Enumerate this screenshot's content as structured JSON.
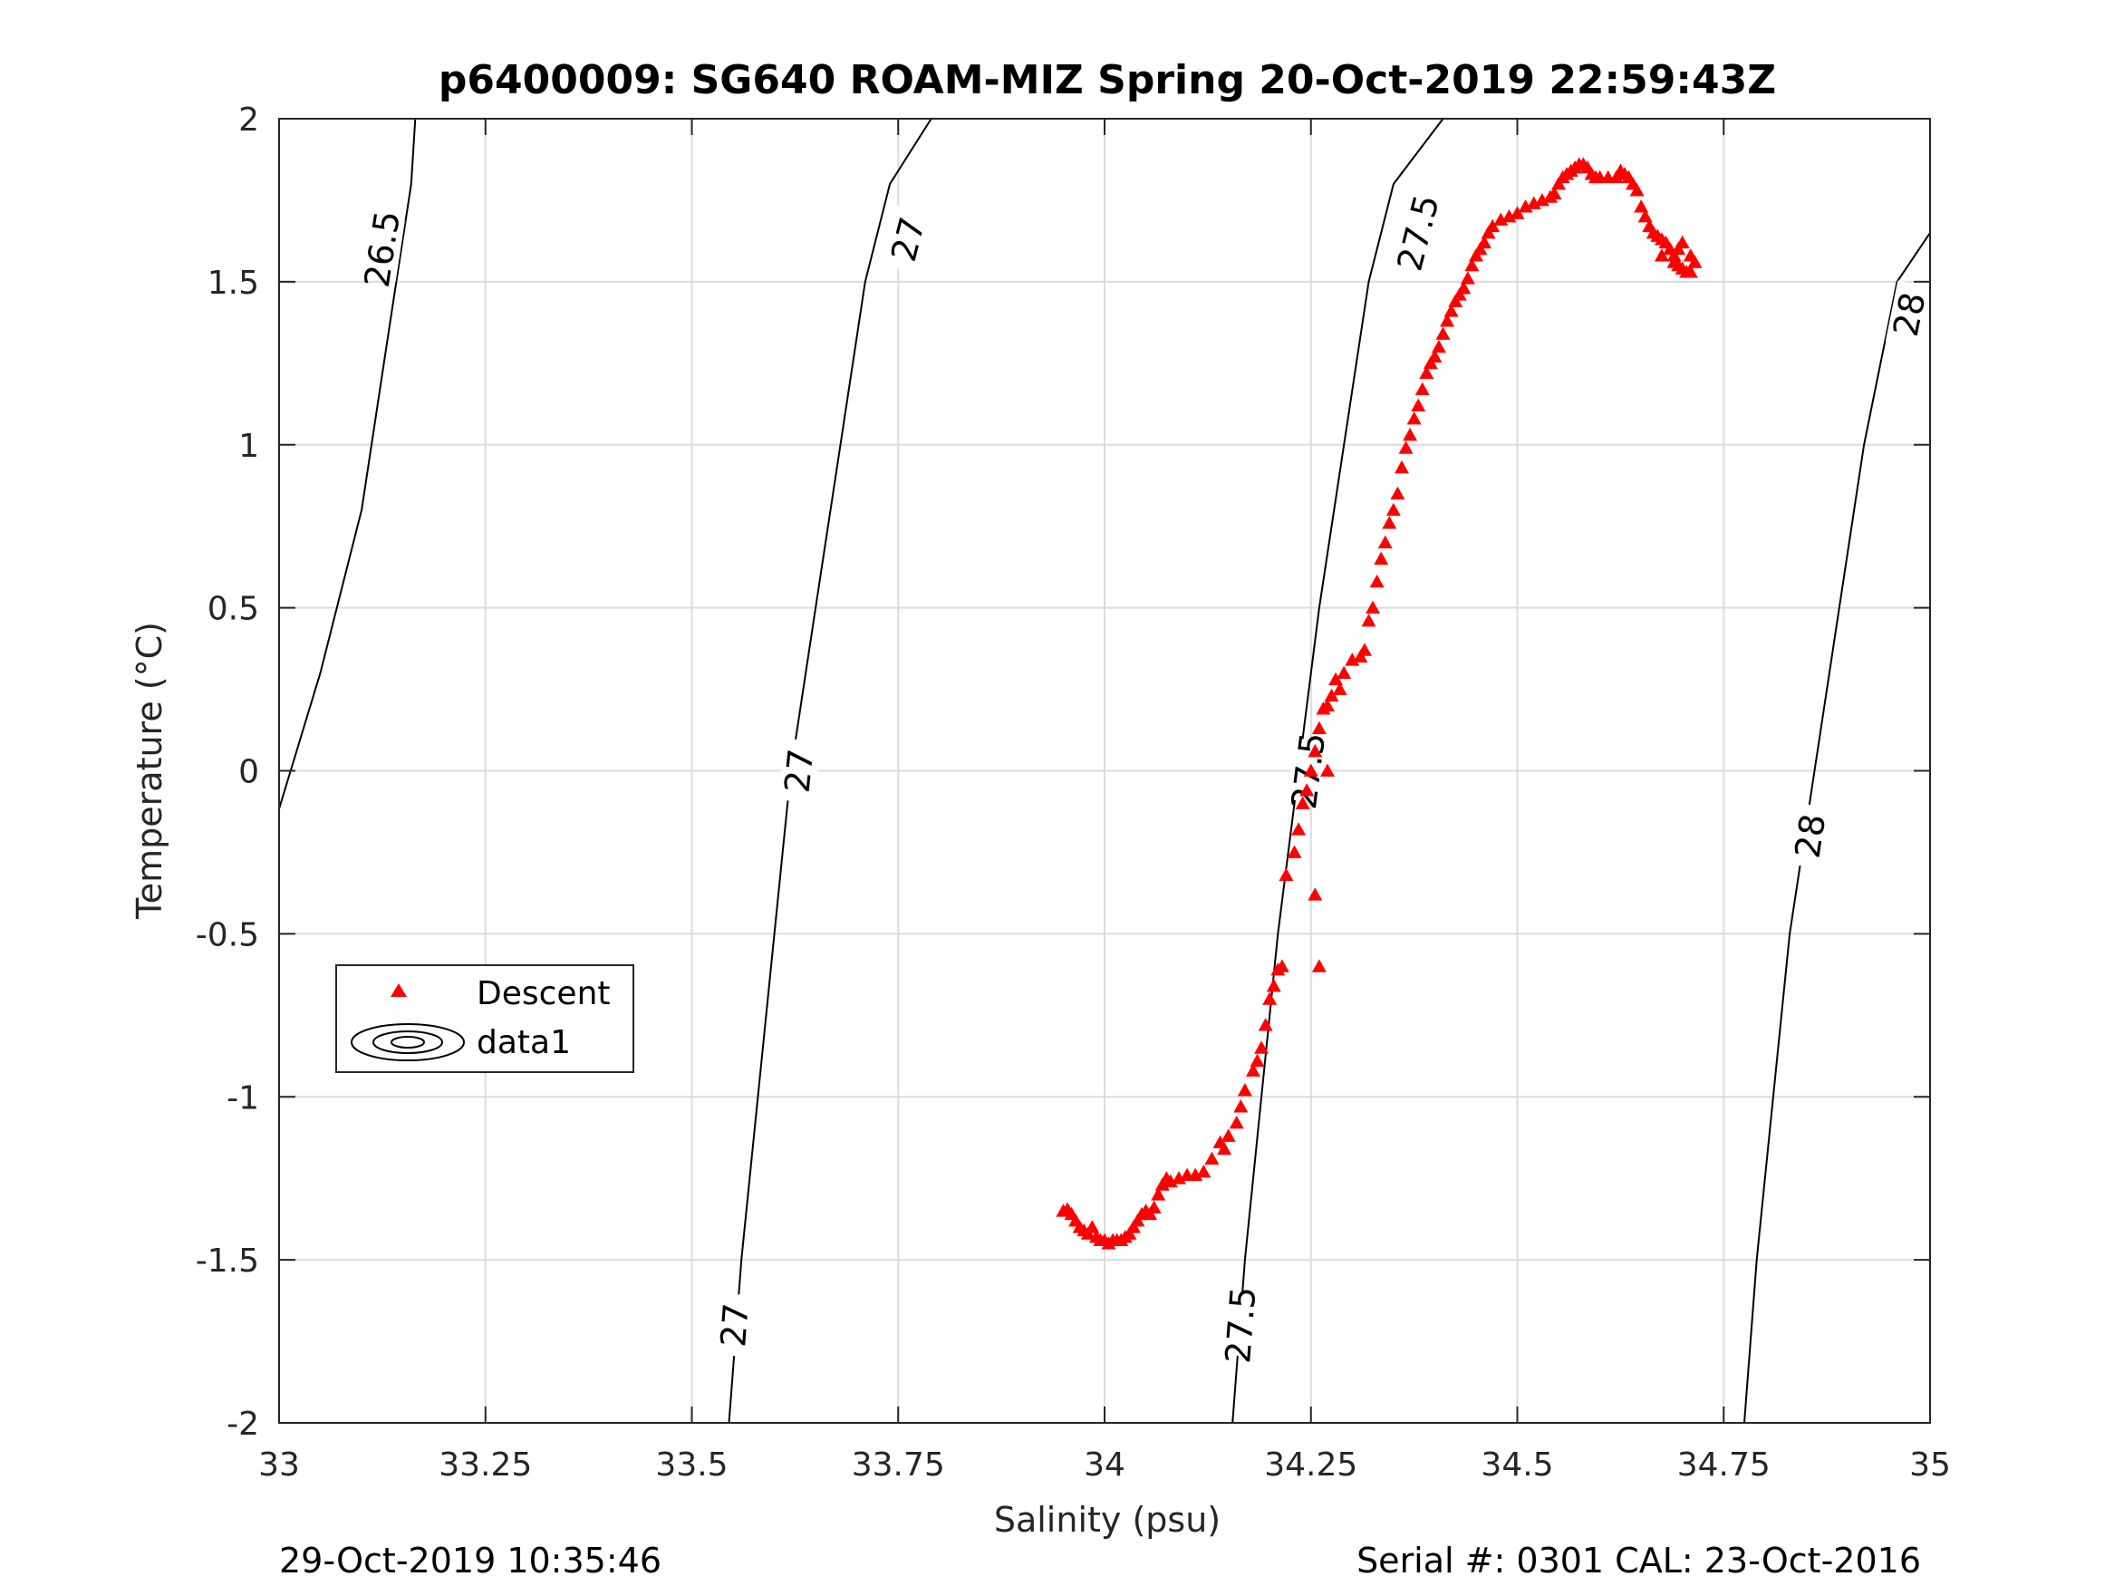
{
  "chart_data": {
    "type": "scatter",
    "title": "p6400009: SG640 ROAM-MIZ Spring 20-Oct-2019 22:59:43Z",
    "xlabel": "Salinity (psu)",
    "ylabel": "Temperature (°C)",
    "xlim": [
      33,
      35
    ],
    "ylim": [
      -2,
      2
    ],
    "grid": true,
    "x_ticks": [
      33,
      33.25,
      33.5,
      33.75,
      34,
      34.25,
      34.5,
      34.75,
      35
    ],
    "x_tick_labels": [
      "33",
      "33.25",
      "33.5",
      "33.75",
      "34",
      "34.25",
      "34.5",
      "34.75",
      "35"
    ],
    "y_ticks": [
      2,
      1.5,
      1,
      0.5,
      0,
      -0.5,
      -1,
      -1.5,
      -2
    ],
    "y_tick_labels": [
      "2",
      "1.5",
      "1",
      "0.5",
      "0",
      "-0.5",
      "-1",
      "-1.5",
      "-2"
    ],
    "legend": {
      "position": "left-middle",
      "entries": [
        "Descent",
        "data1"
      ]
    },
    "footer": {
      "left": "29-Oct-2019 10:35:46",
      "right": "Serial #: 0301  CAL: 23-Oct-2016"
    },
    "contours": [
      {
        "level": "26.5",
        "points": [
          [
            32.99,
            -0.2
          ],
          [
            33.05,
            0.3
          ],
          [
            33.1,
            0.8
          ],
          [
            33.13,
            1.3
          ],
          [
            33.16,
            1.8
          ],
          [
            33.165,
            2.0
          ]
        ],
        "labels": [
          {
            "s": 33.125,
            "t": 1.6
          }
        ]
      },
      {
        "level": "27",
        "points": [
          [
            33.545,
            -2.0
          ],
          [
            33.56,
            -1.5
          ],
          [
            33.58,
            -1.0
          ],
          [
            33.6,
            -0.5
          ],
          [
            33.62,
            0.0
          ],
          [
            33.65,
            0.5
          ],
          [
            33.68,
            1.0
          ],
          [
            33.71,
            1.5
          ],
          [
            33.74,
            1.8
          ],
          [
            33.79,
            2.0
          ]
        ],
        "labels": [
          {
            "s": 33.552,
            "t": -1.7
          },
          {
            "s": 33.63,
            "t": 0.0
          },
          {
            "s": 33.762,
            "t": 1.63
          }
        ]
      },
      {
        "level": "27.5",
        "points": [
          [
            34.155,
            -2.0
          ],
          [
            34.17,
            -1.5
          ],
          [
            34.19,
            -1.0
          ],
          [
            34.21,
            -0.5
          ],
          [
            34.235,
            0.0
          ],
          [
            34.26,
            0.5
          ],
          [
            34.29,
            1.0
          ],
          [
            34.32,
            1.5
          ],
          [
            34.35,
            1.8
          ],
          [
            34.41,
            2.0
          ]
        ],
        "labels": [
          {
            "s": 34.165,
            "t": -1.7
          },
          {
            "s": 34.247,
            "t": 0.0
          },
          {
            "s": 34.38,
            "t": 1.65
          }
        ]
      },
      {
        "level": "28",
        "points": [
          [
            34.775,
            -2.0
          ],
          [
            34.79,
            -1.5
          ],
          [
            34.81,
            -1.0
          ],
          [
            34.83,
            -0.5
          ],
          [
            34.86,
            0.0
          ],
          [
            34.89,
            0.5
          ],
          [
            34.92,
            1.0
          ],
          [
            34.96,
            1.5
          ],
          [
            35.0,
            1.65
          ]
        ],
        "labels": [
          {
            "s": 34.855,
            "t": -0.2
          },
          {
            "s": 34.975,
            "t": 1.4
          }
        ]
      }
    ],
    "series": [
      {
        "name": "Descent",
        "marker": "triangle",
        "color": "#ff0000",
        "points": [
          [
            33.95,
            -1.35
          ],
          [
            33.955,
            -1.345
          ],
          [
            33.96,
            -1.36
          ],
          [
            33.965,
            -1.38
          ],
          [
            33.97,
            -1.4
          ],
          [
            33.975,
            -1.41
          ],
          [
            33.98,
            -1.42
          ],
          [
            33.985,
            -1.4
          ],
          [
            33.99,
            -1.43
          ],
          [
            33.995,
            -1.44
          ],
          [
            34.0,
            -1.44
          ],
          [
            34.005,
            -1.45
          ],
          [
            34.01,
            -1.44
          ],
          [
            34.015,
            -1.44
          ],
          [
            34.02,
            -1.44
          ],
          [
            34.025,
            -1.43
          ],
          [
            34.03,
            -1.42
          ],
          [
            34.035,
            -1.4
          ],
          [
            34.04,
            -1.38
          ],
          [
            34.045,
            -1.36
          ],
          [
            34.05,
            -1.35
          ],
          [
            34.055,
            -1.36
          ],
          [
            34.06,
            -1.34
          ],
          [
            34.065,
            -1.3
          ],
          [
            34.07,
            -1.27
          ],
          [
            34.075,
            -1.25
          ],
          [
            34.08,
            -1.26
          ],
          [
            34.09,
            -1.25
          ],
          [
            34.1,
            -1.24
          ],
          [
            34.11,
            -1.24
          ],
          [
            34.12,
            -1.23
          ],
          [
            34.13,
            -1.19
          ],
          [
            34.14,
            -1.14
          ],
          [
            34.145,
            -1.16
          ],
          [
            34.15,
            -1.12
          ],
          [
            34.16,
            -1.08
          ],
          [
            34.165,
            -1.03
          ],
          [
            34.17,
            -0.98
          ],
          [
            34.18,
            -0.92
          ],
          [
            34.185,
            -0.89
          ],
          [
            34.19,
            -0.85
          ],
          [
            34.195,
            -0.78
          ],
          [
            34.2,
            -0.7
          ],
          [
            34.205,
            -0.66
          ],
          [
            34.21,
            -0.61
          ],
          [
            34.215,
            -0.6
          ],
          [
            34.22,
            -0.32
          ],
          [
            34.23,
            -0.25
          ],
          [
            34.235,
            -0.18
          ],
          [
            34.24,
            -0.1
          ],
          [
            34.245,
            -0.06
          ],
          [
            34.25,
            0.0
          ],
          [
            34.255,
            0.06
          ],
          [
            34.26,
            0.13
          ],
          [
            34.265,
            0.19
          ],
          [
            34.27,
            0.2
          ],
          [
            34.275,
            0.23
          ],
          [
            34.28,
            0.28
          ],
          [
            34.285,
            0.25
          ],
          [
            34.29,
            0.3
          ],
          [
            34.3,
            0.34
          ],
          [
            34.31,
            0.35
          ],
          [
            34.315,
            0.37
          ],
          [
            34.32,
            0.46
          ],
          [
            34.325,
            0.5
          ],
          [
            34.33,
            0.58
          ],
          [
            34.335,
            0.65
          ],
          [
            34.34,
            0.7
          ],
          [
            34.345,
            0.76
          ],
          [
            34.35,
            0.8
          ],
          [
            34.355,
            0.85
          ],
          [
            34.36,
            0.93
          ],
          [
            34.365,
            0.99
          ],
          [
            34.37,
            1.03
          ],
          [
            34.375,
            1.08
          ],
          [
            34.38,
            1.12
          ],
          [
            34.385,
            1.17
          ],
          [
            34.39,
            1.22
          ],
          [
            34.395,
            1.25
          ],
          [
            34.4,
            1.27
          ],
          [
            34.405,
            1.3
          ],
          [
            34.41,
            1.34
          ],
          [
            34.415,
            1.38
          ],
          [
            34.42,
            1.41
          ],
          [
            34.425,
            1.44
          ],
          [
            34.43,
            1.46
          ],
          [
            34.435,
            1.48
          ],
          [
            34.44,
            1.51
          ],
          [
            34.445,
            1.55
          ],
          [
            34.45,
            1.58
          ],
          [
            34.455,
            1.6
          ],
          [
            34.46,
            1.62
          ],
          [
            34.465,
            1.65
          ],
          [
            34.47,
            1.67
          ],
          [
            34.48,
            1.69
          ],
          [
            34.49,
            1.7
          ],
          [
            34.5,
            1.71
          ],
          [
            34.51,
            1.73
          ],
          [
            34.52,
            1.74
          ],
          [
            34.53,
            1.75
          ],
          [
            34.54,
            1.76
          ],
          [
            34.545,
            1.77
          ],
          [
            34.55,
            1.8
          ],
          [
            34.555,
            1.82
          ],
          [
            34.56,
            1.83
          ],
          [
            34.565,
            1.84
          ],
          [
            34.57,
            1.85
          ],
          [
            34.575,
            1.86
          ],
          [
            34.58,
            1.86
          ],
          [
            34.585,
            1.85
          ],
          [
            34.59,
            1.83
          ],
          [
            34.595,
            1.82
          ],
          [
            34.6,
            1.82
          ],
          [
            34.61,
            1.82
          ],
          [
            34.62,
            1.82
          ],
          [
            34.625,
            1.84
          ],
          [
            34.63,
            1.83
          ],
          [
            34.635,
            1.82
          ],
          [
            34.64,
            1.8
          ],
          [
            34.645,
            1.78
          ],
          [
            34.65,
            1.73
          ],
          [
            34.655,
            1.7
          ],
          [
            34.66,
            1.67
          ],
          [
            34.665,
            1.65
          ],
          [
            34.67,
            1.64
          ],
          [
            34.675,
            1.63
          ],
          [
            34.68,
            1.62
          ],
          [
            34.685,
            1.6
          ],
          [
            34.69,
            1.58
          ],
          [
            34.695,
            1.6
          ],
          [
            34.7,
            1.62
          ],
          [
            34.695,
            1.55
          ],
          [
            34.7,
            1.54
          ],
          [
            34.705,
            1.53
          ],
          [
            34.71,
            1.53
          ],
          [
            34.715,
            1.56
          ],
          [
            34.71,
            1.58
          ],
          [
            34.69,
            1.56
          ],
          [
            34.675,
            1.58
          ],
          [
            34.27,
            0.0
          ],
          [
            34.26,
            -0.6
          ],
          [
            34.255,
            -0.38
          ]
        ]
      }
    ]
  }
}
